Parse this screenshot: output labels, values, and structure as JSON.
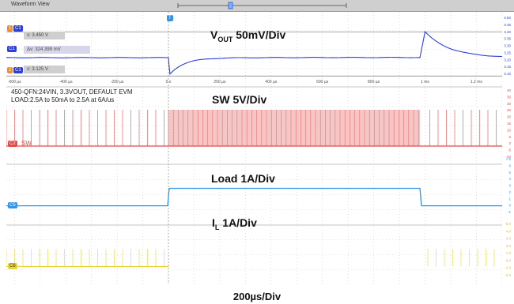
{
  "window_title": "Waveform View",
  "channels": [
    {
      "id": "C1",
      "label": "V",
      "sub": "OUT",
      "suffix": " 50mV/Div",
      "color": "#2b3fd9",
      "badge": "C1"
    },
    {
      "id": "C2",
      "label": "SW 5V/Div",
      "color": "#e34a4a",
      "badge": "C2",
      "tag": "SW"
    },
    {
      "id": "C5",
      "label": "Load 1A/Div",
      "color": "#2f95e8",
      "badge": "C5"
    },
    {
      "id": "C6",
      "label": "I",
      "sub": "L",
      "suffix": " 1A/Div",
      "color": "#e7d53a",
      "badge": "C6"
    }
  ],
  "cursors": {
    "v1": "v: 3.450 V",
    "delta": "Δv: 324.399 mV",
    "v2": "v: 3.125 V",
    "marker": "T"
  },
  "info": {
    "line1": "450-QFN:24VIN, 3.3VOUT, DEFAULT EVM",
    "line2": "LOAD:2.5A to 50mA to 2.5A at 6A/us"
  },
  "time_ticks": [
    "-600 µs",
    "-400 µs",
    "-200 µs",
    "0 s",
    "200 µs",
    "400 µs",
    "600 µs",
    "800 µs",
    "1 ms",
    "1.2 ms"
  ],
  "vout_scale_ticks": [
    "3.50",
    "3.45",
    "3.40",
    "3.35",
    "3.30",
    "3.25",
    "3.20",
    "3.15",
    "3.10"
  ],
  "sw_scale_ticks": [
    "40",
    "35",
    "30",
    "25",
    "20",
    "15",
    "10",
    "5",
    "0",
    "-5",
    "-10"
  ],
  "load_scale_ticks": [
    "7.5",
    "6",
    "5",
    "4",
    "3",
    "2",
    "1",
    "0",
    "-1"
  ],
  "il_scale_ticks": [
    "5.0",
    "4.0",
    "3.0",
    "2.0",
    "1.0",
    "0.0",
    "-1.0",
    "-2.0"
  ],
  "footer": "200µs/Div",
  "chart_data": {
    "type": "line",
    "x_unit": "µs",
    "xlim": [
      -640,
      1320
    ],
    "series": [
      {
        "name": "VOUT",
        "unit": "V",
        "x": [
          -640,
          0,
          5,
          40,
          120,
          300,
          600,
          980,
          1000,
          1040,
          1100,
          1200,
          1320
        ],
        "y": [
          3.26,
          3.26,
          3.13,
          3.2,
          3.235,
          3.255,
          3.26,
          3.26,
          3.45,
          3.4,
          3.33,
          3.28,
          3.265
        ]
      },
      {
        "name": "SW",
        "unit": "V",
        "x": [
          -640,
          0,
          0,
          980,
          980,
          1320
        ],
        "y": [
          0,
          0,
          24,
          24,
          0,
          0
        ]
      },
      {
        "name": "Load",
        "unit": "A",
        "x": [
          -640,
          -3,
          3,
          980,
          986,
          1320
        ],
        "y": [
          0.05,
          0.05,
          2.5,
          2.5,
          0.05,
          0.05
        ]
      },
      {
        "name": "IL",
        "unit": "A",
        "x": [
          -640,
          0,
          30,
          980,
          1010,
          1320
        ],
        "y": [
          0.05,
          0.05,
          2.5,
          2.5,
          0.05,
          0.05
        ]
      }
    ]
  }
}
